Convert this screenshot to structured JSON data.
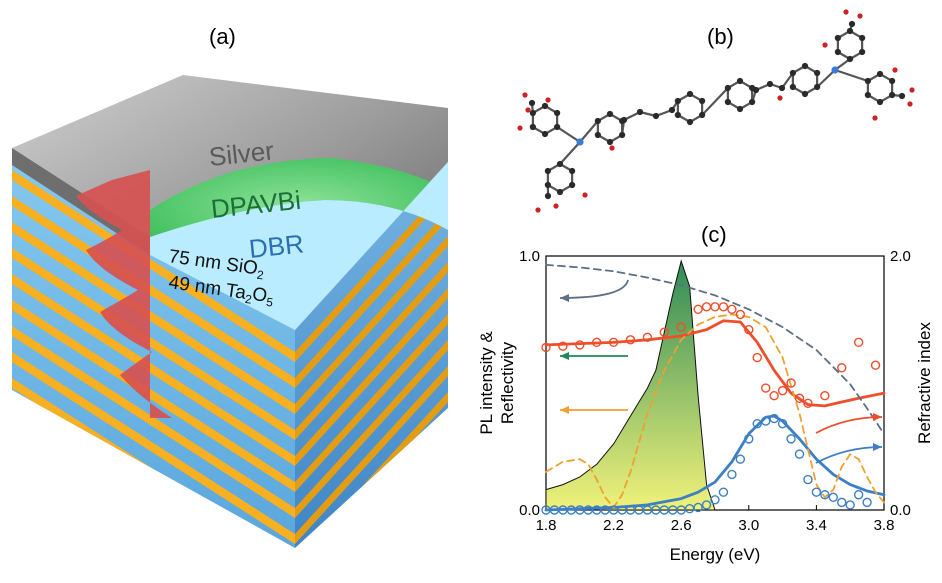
{
  "panels": {
    "a": {
      "label": "(a)"
    },
    "b": {
      "label": "(b)"
    },
    "c": {
      "label": "(c)"
    }
  },
  "device": {
    "silver_label": "Silver",
    "organic_label": "DPAVBi",
    "dbr_label": "DBR",
    "layer1": {
      "prefix": "75 nm SiO",
      "sub": "2"
    },
    "layer2": {
      "prefix": "49 nm Ta",
      "sub1": "2",
      "mid": "O",
      "sub2": "5"
    }
  },
  "chart_data": {
    "type": "line",
    "xlabel": "Energy (eV)",
    "ylabel_lines": [
      "PL intensity &",
      "Reflectivity"
    ],
    "y2label": "Refractive index",
    "xlim": [
      1.8,
      3.8
    ],
    "ylim": [
      0.0,
      1.0
    ],
    "y2lim": [
      0.0,
      2.0
    ],
    "xticks": [
      "1.8",
      "2.2",
      "2.6",
      "3.0",
      "3.4",
      "3.8"
    ],
    "yticks": [
      "0.0",
      "1.0"
    ],
    "y2ticks": [
      "0.0",
      "2.0"
    ],
    "colors": {
      "red": "#f04e2a",
      "blue": "#3c7fc4",
      "orange": "#f0a030",
      "green": "#1e8a5a",
      "gray": "#5d6f86",
      "pl_top": "#2e8b57",
      "pl_bottom": "#f1f27a"
    },
    "series": [
      {
        "style": "line",
        "color": "red",
        "x": [
          1.8,
          2.0,
          2.2,
          2.4,
          2.6,
          2.75,
          2.85,
          2.95,
          3.05,
          3.15,
          3.25,
          3.35,
          3.45,
          3.55,
          3.65,
          3.8
        ],
        "y": [
          0.65,
          0.655,
          0.66,
          0.67,
          0.685,
          0.71,
          0.745,
          0.74,
          0.66,
          0.55,
          0.46,
          0.415,
          0.41,
          0.425,
          0.44,
          0.46
        ]
      },
      {
        "style": "markers",
        "color": "red",
        "x": [
          1.8,
          1.9,
          2.0,
          2.1,
          2.2,
          2.3,
          2.4,
          2.5,
          2.6,
          2.7,
          2.75,
          2.8,
          2.85,
          2.9,
          2.95,
          3.0,
          3.05,
          3.1,
          3.15,
          3.2,
          3.25,
          3.3,
          3.35,
          3.45,
          3.55,
          3.65,
          3.75
        ],
        "y": [
          0.64,
          0.645,
          0.65,
          0.66,
          0.66,
          0.67,
          0.68,
          0.7,
          0.72,
          0.79,
          0.8,
          0.8,
          0.8,
          0.79,
          0.77,
          0.71,
          0.6,
          0.48,
          0.45,
          0.47,
          0.5,
          0.44,
          0.42,
          0.45,
          0.56,
          0.66,
          0.57
        ]
      },
      {
        "style": "line",
        "color": "blue",
        "x": [
          1.8,
          2.0,
          2.2,
          2.4,
          2.6,
          2.7,
          2.8,
          2.9,
          3.0,
          3.1,
          3.15,
          3.2,
          3.3,
          3.4,
          3.5,
          3.6,
          3.7,
          3.8
        ],
        "y": [
          0.0,
          0.005,
          0.01,
          0.02,
          0.045,
          0.07,
          0.11,
          0.19,
          0.3,
          0.365,
          0.37,
          0.35,
          0.28,
          0.2,
          0.14,
          0.1,
          0.075,
          0.06
        ]
      },
      {
        "style": "markers",
        "color": "blue",
        "x": [
          1.8,
          1.85,
          1.9,
          1.95,
          2.0,
          2.05,
          2.1,
          2.15,
          2.2,
          2.25,
          2.3,
          2.35,
          2.4,
          2.45,
          2.5,
          2.55,
          2.6,
          2.65,
          2.7,
          2.75,
          2.8,
          2.85,
          2.9,
          2.95,
          3.0,
          3.05,
          3.1,
          3.15,
          3.2,
          3.25,
          3.3,
          3.35,
          3.4,
          3.45,
          3.5,
          3.55,
          3.6,
          3.65,
          3.7
        ],
        "y": [
          0.0,
          0.0,
          0.0,
          0.0,
          0.0,
          0.0,
          0.0,
          0.0,
          0.0,
          0.0,
          0.0,
          0.0,
          0.0,
          0.0,
          0.0,
          0.0,
          0.0,
          0.005,
          0.01,
          0.02,
          0.04,
          0.07,
          0.14,
          0.2,
          0.28,
          0.34,
          0.35,
          0.36,
          0.34,
          0.28,
          0.22,
          0.12,
          0.07,
          0.06,
          0.05,
          0.03,
          0.02,
          0.06,
          0.03
        ]
      },
      {
        "style": "dashed",
        "color": "orange",
        "x": [
          1.8,
          1.9,
          2.0,
          2.05,
          2.1,
          2.15,
          2.2,
          2.25,
          2.3,
          2.4,
          2.5,
          2.6,
          2.7,
          2.8,
          2.9,
          3.0,
          3.1,
          3.2,
          3.3,
          3.4,
          3.45,
          3.5,
          3.55,
          3.6,
          3.65,
          3.7,
          3.75,
          3.8
        ],
        "y": [
          0.15,
          0.19,
          0.2,
          0.18,
          0.12,
          0.05,
          0.01,
          0.06,
          0.15,
          0.38,
          0.55,
          0.67,
          0.73,
          0.76,
          0.77,
          0.76,
          0.72,
          0.6,
          0.38,
          0.1,
          0.05,
          0.08,
          0.17,
          0.22,
          0.2,
          0.13,
          0.07,
          0.03
        ]
      },
      {
        "style": "dashed",
        "color": "gray",
        "axis": "right",
        "x": [
          1.8,
          2.0,
          2.2,
          2.4,
          2.6,
          2.8,
          3.0,
          3.2,
          3.4,
          3.6,
          3.7,
          3.8
        ],
        "y": [
          1.93,
          1.91,
          1.88,
          1.83,
          1.77,
          1.69,
          1.58,
          1.44,
          1.26,
          0.99,
          0.8,
          0.6
        ]
      },
      {
        "style": "area",
        "color": "pl",
        "x": [
          1.8,
          1.9,
          2.0,
          2.1,
          2.2,
          2.3,
          2.4,
          2.45,
          2.5,
          2.55,
          2.6,
          2.65,
          2.7,
          2.75,
          2.8
        ],
        "y": [
          0.08,
          0.1,
          0.13,
          0.18,
          0.26,
          0.37,
          0.48,
          0.55,
          0.7,
          0.85,
          0.98,
          0.88,
          0.45,
          0.1,
          0.0
        ]
      }
    ],
    "arrows": [
      {
        "color": "gray",
        "direction": "left"
      },
      {
        "color": "green",
        "direction": "left"
      },
      {
        "color": "orange",
        "direction": "left"
      },
      {
        "color": "red",
        "direction": "right"
      },
      {
        "color": "blue",
        "direction": "right"
      }
    ]
  }
}
